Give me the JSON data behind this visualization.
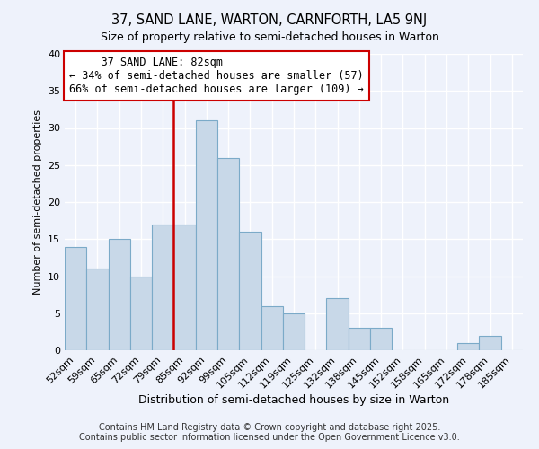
{
  "title": "37, SAND LANE, WARTON, CARNFORTH, LA5 9NJ",
  "subtitle": "Size of property relative to semi-detached houses in Warton",
  "xlabel": "Distribution of semi-detached houses by size in Warton",
  "ylabel": "Number of semi-detached properties",
  "categories": [
    "52sqm",
    "59sqm",
    "65sqm",
    "72sqm",
    "79sqm",
    "85sqm",
    "92sqm",
    "99sqm",
    "105sqm",
    "112sqm",
    "119sqm",
    "125sqm",
    "132sqm",
    "138sqm",
    "145sqm",
    "152sqm",
    "158sqm",
    "165sqm",
    "172sqm",
    "178sqm",
    "185sqm"
  ],
  "values": [
    14,
    11,
    15,
    10,
    17,
    17,
    31,
    26,
    16,
    6,
    5,
    0,
    7,
    3,
    3,
    0,
    0,
    0,
    1,
    2,
    0
  ],
  "bar_color": "#c8d8e8",
  "bar_edge_color": "#7baac8",
  "property_line_index": 5,
  "property_line_label": "37 SAND LANE: 82sqm",
  "smaller_pct": "34%",
  "smaller_count": 57,
  "larger_pct": "66%",
  "larger_count": 109,
  "annotation_box_color": "#cc0000",
  "ylim": [
    0,
    40
  ],
  "yticks": [
    0,
    5,
    10,
    15,
    20,
    25,
    30,
    35,
    40
  ],
  "background_color": "#eef2fb",
  "footer1": "Contains HM Land Registry data © Crown copyright and database right 2025.",
  "footer2": "Contains public sector information licensed under the Open Government Licence v3.0.",
  "title_fontsize": 10.5,
  "subtitle_fontsize": 9,
  "xlabel_fontsize": 9,
  "ylabel_fontsize": 8,
  "tick_fontsize": 8,
  "footer_fontsize": 7
}
